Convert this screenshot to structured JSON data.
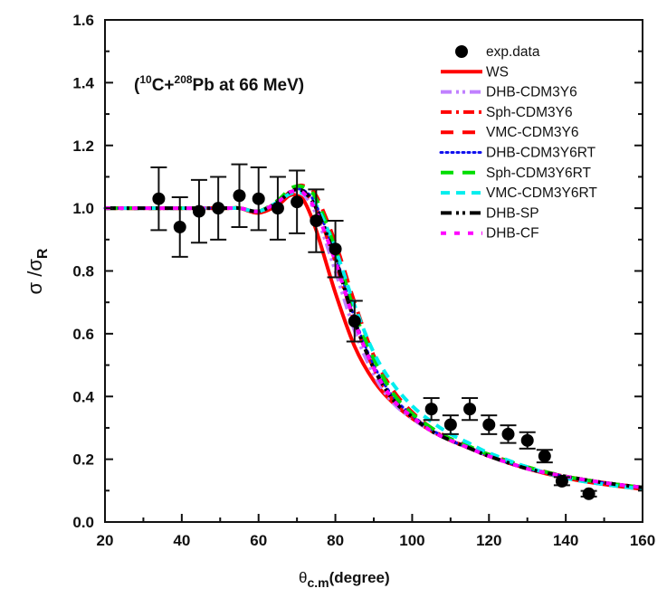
{
  "chart_data": {
    "type": "scatter",
    "title": "",
    "annotation": {
      "open": "(",
      "sup1": "10",
      "mid": "C+",
      "sup2": "208",
      "rest": "Pb at 66 MeV)"
    },
    "xlabel": {
      "main": "θ",
      "sub": "c.m",
      "rest": "(degree)"
    },
    "ylabel": {
      "main": "σ /σ",
      "sub": "R"
    },
    "xlim": [
      20,
      160
    ],
    "ylim": [
      0.0,
      1.6
    ],
    "x_ticks": [
      20,
      40,
      60,
      80,
      100,
      120,
      140,
      160
    ],
    "x_tick_labels": [
      "20",
      "40",
      "60",
      "80",
      "100",
      "120",
      "140",
      "160"
    ],
    "y_ticks": [
      0.0,
      0.2,
      0.4,
      0.6,
      0.8,
      1.0,
      1.2,
      1.4,
      1.6
    ],
    "y_tick_labels": [
      "0.0",
      "0.2",
      "0.4",
      "0.6",
      "0.8",
      "1.0",
      "1.2",
      "1.4",
      "1.6"
    ],
    "grid": false,
    "legend_position": "top-right",
    "experimental": {
      "name": "exp.data",
      "x": [
        34,
        39.5,
        44.5,
        49.5,
        55,
        60,
        65,
        70,
        75,
        80,
        85,
        105,
        110,
        115,
        120,
        125,
        130,
        134.5,
        139,
        146
      ],
      "y": [
        1.03,
        0.94,
        0.99,
        1.0,
        1.04,
        1.03,
        1.0,
        1.02,
        0.96,
        0.87,
        0.64,
        0.36,
        0.31,
        0.36,
        0.31,
        0.28,
        0.26,
        0.21,
        0.13,
        0.09
      ],
      "err": [
        0.1,
        0.095,
        0.1,
        0.1,
        0.1,
        0.1,
        0.1,
        0.1,
        0.1,
        0.09,
        0.065,
        0.035,
        0.03,
        0.035,
        0.03,
        0.028,
        0.026,
        0.02,
        0.013,
        0.009
      ]
    },
    "series": [
      {
        "name": "WS",
        "color": "#ff0000",
        "style": "solid",
        "x": [
          20,
          50,
          55,
          60,
          65,
          68,
          70,
          72,
          75,
          80,
          85,
          90,
          95,
          100,
          105,
          110,
          115,
          120,
          130,
          140,
          150,
          160
        ],
        "y": [
          1.0,
          1.0,
          1.0,
          0.985,
          1.01,
          1.04,
          1.04,
          1.02,
          0.93,
          0.73,
          0.56,
          0.45,
          0.38,
          0.33,
          0.29,
          0.26,
          0.235,
          0.21,
          0.17,
          0.14,
          0.12,
          0.105
        ]
      },
      {
        "name": "DHB-CDM3Y6",
        "color": "#c080ff",
        "style": "dash-dot-dot",
        "x": [
          20,
          50,
          55,
          60,
          65,
          68,
          70,
          72,
          75,
          80,
          85,
          90,
          95,
          100,
          105,
          110,
          115,
          120,
          130,
          140,
          150,
          160
        ],
        "y": [
          1.0,
          1.0,
          1.0,
          0.99,
          1.02,
          1.05,
          1.055,
          1.04,
          0.98,
          0.8,
          0.61,
          0.47,
          0.38,
          0.33,
          0.29,
          0.26,
          0.235,
          0.21,
          0.17,
          0.145,
          0.125,
          0.11
        ]
      },
      {
        "name": "Sph-CDM3Y6",
        "color": "#ff0000",
        "style": "dash-dot",
        "x": [
          20,
          50,
          55,
          60,
          65,
          68,
          70,
          72,
          75,
          80,
          85,
          90,
          95,
          100,
          105,
          110,
          115,
          120,
          130,
          140,
          150,
          160
        ],
        "y": [
          1.0,
          1.0,
          1.0,
          0.99,
          1.02,
          1.05,
          1.06,
          1.05,
          1.0,
          0.83,
          0.64,
          0.49,
          0.39,
          0.335,
          0.295,
          0.26,
          0.235,
          0.21,
          0.17,
          0.145,
          0.125,
          0.11
        ]
      },
      {
        "name": "VMC-CDM3Y6",
        "color": "#ff0000",
        "style": "long-dash",
        "x": [
          20,
          50,
          55,
          60,
          65,
          68,
          70,
          72,
          75,
          80,
          85,
          90,
          95,
          100,
          105,
          110,
          115,
          120,
          130,
          140,
          150,
          160
        ],
        "y": [
          1.0,
          1.0,
          1.0,
          0.99,
          1.02,
          1.055,
          1.07,
          1.07,
          1.04,
          0.89,
          0.7,
          0.53,
          0.42,
          0.35,
          0.3,
          0.265,
          0.24,
          0.215,
          0.175,
          0.145,
          0.125,
          0.11
        ]
      },
      {
        "name": "DHB-CDM3Y6RT",
        "color": "#1010ee",
        "style": "dotted",
        "x": [
          20,
          50,
          55,
          60,
          65,
          68,
          70,
          72,
          75,
          80,
          85,
          90,
          95,
          100,
          105,
          110,
          115,
          120,
          130,
          140,
          150,
          160
        ],
        "y": [
          1.0,
          1.0,
          1.0,
          0.99,
          1.02,
          1.05,
          1.06,
          1.055,
          1.01,
          0.85,
          0.65,
          0.5,
          0.4,
          0.34,
          0.295,
          0.26,
          0.235,
          0.21,
          0.17,
          0.145,
          0.125,
          0.11
        ]
      },
      {
        "name": "Sph-CDM3Y6RT",
        "color": "#00dd00",
        "style": "long-dash",
        "x": [
          20,
          50,
          55,
          60,
          65,
          68,
          70,
          72,
          75,
          80,
          85,
          90,
          95,
          100,
          105,
          110,
          115,
          120,
          130,
          140,
          150,
          160
        ],
        "y": [
          1.0,
          1.0,
          1.0,
          0.99,
          1.025,
          1.06,
          1.07,
          1.065,
          1.03,
          0.87,
          0.67,
          0.52,
          0.41,
          0.345,
          0.3,
          0.265,
          0.24,
          0.215,
          0.175,
          0.145,
          0.125,
          0.11
        ]
      },
      {
        "name": "VMC-CDM3Y6RT",
        "color": "#00eeee",
        "style": "dashed",
        "x": [
          20,
          50,
          55,
          60,
          65,
          68,
          70,
          72,
          75,
          80,
          85,
          90,
          95,
          100,
          105,
          110,
          115,
          120,
          130,
          140,
          150,
          160
        ],
        "y": [
          1.0,
          1.0,
          1.0,
          0.99,
          1.02,
          1.045,
          1.05,
          1.045,
          1.01,
          0.87,
          0.69,
          0.54,
          0.44,
          0.37,
          0.32,
          0.28,
          0.25,
          0.22,
          0.175,
          0.14,
          0.12,
          0.105
        ]
      },
      {
        "name": "DHB-SP",
        "color": "#000000",
        "style": "dash-dot-dot",
        "x": [
          20,
          50,
          55,
          60,
          65,
          68,
          70,
          72,
          75,
          80,
          85,
          90,
          95,
          100,
          105,
          110,
          115,
          120,
          130,
          140,
          150,
          160
        ],
        "y": [
          1.0,
          1.0,
          1.0,
          0.99,
          1.02,
          1.05,
          1.06,
          1.05,
          1.0,
          0.84,
          0.64,
          0.49,
          0.39,
          0.335,
          0.29,
          0.26,
          0.235,
          0.21,
          0.17,
          0.145,
          0.125,
          0.11
        ]
      },
      {
        "name": "DHB-CF",
        "color": "#ff00ff",
        "style": "short-dash",
        "x": [
          20,
          50,
          55,
          60,
          65,
          68,
          70,
          72,
          75,
          80,
          85,
          90,
          95,
          100,
          105,
          110,
          115,
          120,
          130,
          140,
          150,
          160
        ],
        "y": [
          1.0,
          1.0,
          1.0,
          0.99,
          1.02,
          1.05,
          1.055,
          1.045,
          0.99,
          0.83,
          0.64,
          0.49,
          0.39,
          0.335,
          0.29,
          0.26,
          0.235,
          0.21,
          0.17,
          0.145,
          0.125,
          0.11
        ]
      }
    ]
  }
}
